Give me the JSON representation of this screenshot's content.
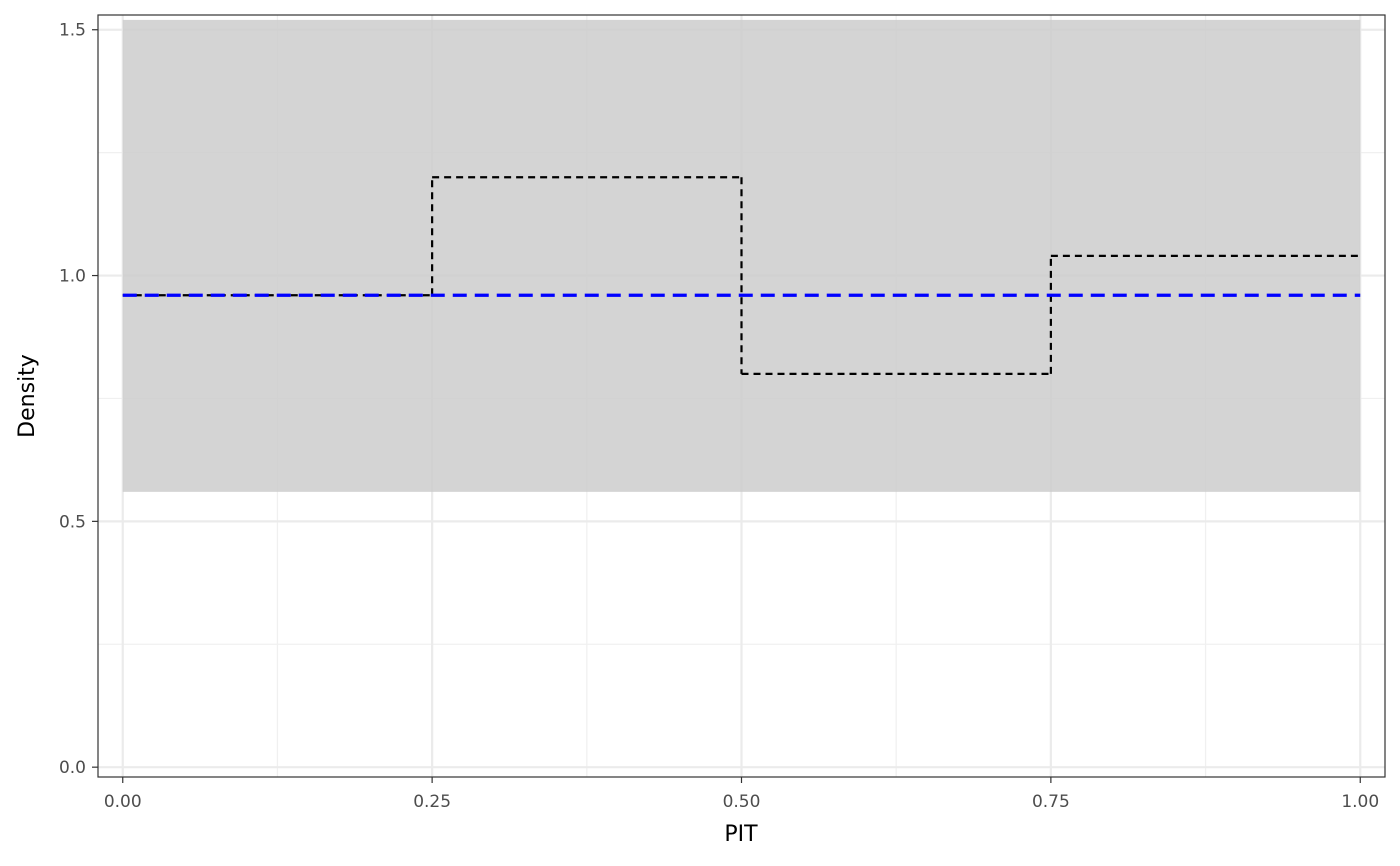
{
  "chart_data": {
    "type": "histogram-step",
    "title": "",
    "xlabel": "PIT",
    "ylabel": "Density",
    "xlim": [
      -0.02,
      1.02
    ],
    "ylim": [
      -0.02,
      1.53
    ],
    "x_ticks": [
      0.0,
      0.25,
      0.5,
      0.75,
      1.0
    ],
    "x_tick_labels": [
      "0.00",
      "0.25",
      "0.50",
      "0.75",
      "1.00"
    ],
    "y_ticks": [
      0.0,
      0.5,
      1.0,
      1.5
    ],
    "y_tick_labels": [
      "0.0",
      "0.5",
      "1.0",
      "1.5"
    ],
    "x_minor_ticks": [
      0.125,
      0.375,
      0.625,
      0.875
    ],
    "y_minor_ticks": [
      0.25,
      0.75,
      1.25
    ],
    "grid": true,
    "confidence_band": {
      "x": [
        0.0,
        1.0
      ],
      "ymin": 0.56,
      "ymax": 1.52,
      "color": "#cccccc"
    },
    "bins": [
      {
        "x0": 0.0,
        "x1": 0.25,
        "density": 0.96
      },
      {
        "x0": 0.25,
        "x1": 0.5,
        "density": 1.2
      },
      {
        "x0": 0.5,
        "x1": 0.75,
        "density": 0.8
      },
      {
        "x0": 0.75,
        "x1": 1.0,
        "density": 1.04
      }
    ],
    "step_color": "#000000",
    "reference_line": {
      "y": 0.96,
      "x": [
        0.0,
        1.0
      ],
      "color": "#0000ff"
    }
  }
}
